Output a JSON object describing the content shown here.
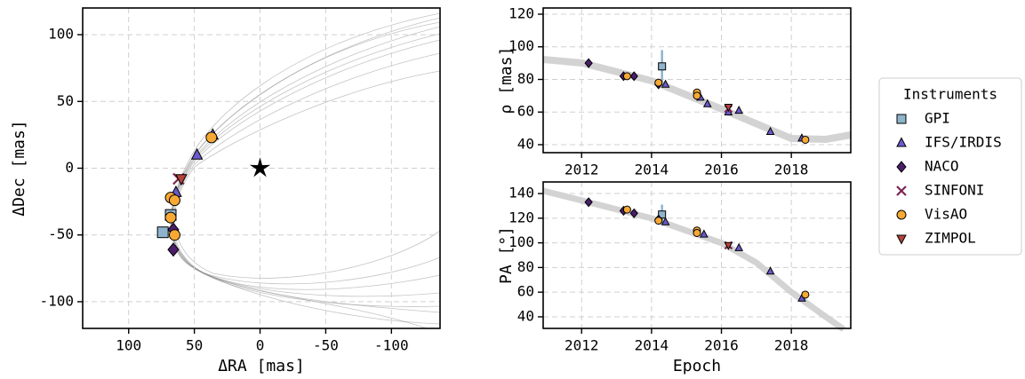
{
  "chart_data": [
    {
      "type": "scatter",
      "xlabel": "ΔRA [mas]",
      "ylabel": "ΔDec [mas]",
      "xlim": [
        135,
        -137
      ],
      "ylim": [
        -120,
        120
      ],
      "xticks": [
        100,
        50,
        0,
        -50,
        -100
      ],
      "yticks": [
        -100,
        -50,
        0,
        50,
        100
      ],
      "grid": true,
      "legend_title": "Instruments",
      "legend": "right",
      "primary": {
        "x": 0,
        "y": 0,
        "color": "#000000"
      },
      "series": [
        {
          "name": "GPI",
          "color": "#8fb3cc",
          "marker": "square",
          "x": [
            74,
            68
          ],
          "y": [
            -48,
            -35
          ]
        },
        {
          "name": "IFS/IRDIS",
          "color": "#6a5acd",
          "marker": "triangle",
          "x": [
            48,
            36,
            64
          ],
          "y": [
            10,
            25,
            -18
          ]
        },
        {
          "name": "NACO",
          "color": "#4b1d6b",
          "marker": "diamond",
          "x": [
            66,
            66
          ],
          "y": [
            -46,
            -61
          ]
        },
        {
          "name": "SINFONI",
          "color": "#7b2453",
          "marker": "x",
          "x": [
            62
          ],
          "y": [
            -8
          ]
        },
        {
          "name": "VisAO",
          "color": "#f7a933",
          "marker": "circle",
          "x": [
            37,
            68,
            68,
            65,
            65
          ],
          "y": [
            23,
            -22,
            -37,
            -24,
            -50
          ]
        },
        {
          "name": "ZIMPOL",
          "color": "#b5433a",
          "marker": "down",
          "x": [
            60
          ],
          "y": [
            -8
          ]
        }
      ]
    },
    {
      "type": "scatter",
      "ylabel": "ρ [mas]",
      "xlim": [
        2010.9,
        2019.7
      ],
      "ylim": [
        35.1,
        123.8
      ],
      "xticks": [
        2012,
        2014,
        2016,
        2018
      ],
      "yticks": [
        40,
        60,
        80,
        100,
        120
      ],
      "grid": true,
      "series": [
        {
          "color": "#8fb3cc",
          "marker": "square",
          "x": [
            2014.3
          ],
          "y": [
            88
          ],
          "errors": [
            10
          ]
        },
        {
          "color": "#6a5acd",
          "marker": "triangle",
          "x": [
            2014.4,
            2015.4,
            2015.6,
            2016.2,
            2016.5,
            2017.4,
            2018.3
          ],
          "y": [
            77,
            69,
            65,
            60,
            61,
            48,
            44
          ]
        },
        {
          "color": "#4b1d6b",
          "marker": "diamond",
          "x": [
            2012.2,
            2013.2,
            2013.5,
            2014.2
          ],
          "y": [
            90,
            82,
            82,
            77
          ]
        },
        {
          "color": "#7b2453",
          "marker": "x",
          "x": [
            2016.2
          ],
          "y": [
            62
          ]
        },
        {
          "color": "#f7a933",
          "marker": "circle",
          "x": [
            2013.3,
            2014.2,
            2015.3,
            2015.3,
            2018.4
          ],
          "y": [
            82,
            78,
            72,
            70,
            43
          ]
        },
        {
          "color": "#b5433a",
          "marker": "down",
          "x": [
            2016.2
          ],
          "y": [
            63
          ]
        }
      ]
    },
    {
      "type": "scatter",
      "xlabel": "Epoch",
      "ylabel": "PA [°]",
      "xlim": [
        2010.9,
        2019.7
      ],
      "ylim": [
        30.6,
        149.4
      ],
      "xticks": [
        2012,
        2014,
        2016,
        2018
      ],
      "yticks": [
        40,
        60,
        80,
        100,
        120,
        140
      ],
      "grid": true,
      "series": [
        {
          "color": "#8fb3cc",
          "marker": "square",
          "x": [
            2014.3
          ],
          "y": [
            123
          ],
          "errors": [
            8
          ]
        },
        {
          "color": "#6a5acd",
          "marker": "triangle",
          "x": [
            2014.4,
            2015.5,
            2016.5,
            2017.4,
            2018.3
          ],
          "y": [
            117,
            107,
            96,
            77,
            55
          ]
        },
        {
          "color": "#4b1d6b",
          "marker": "diamond",
          "x": [
            2012.2,
            2013.2,
            2013.5,
            2014.2
          ],
          "y": [
            133,
            126,
            124,
            119
          ]
        },
        {
          "color": "#7b2453",
          "marker": "x",
          "x": [
            2016.2
          ],
          "y": [
            98
          ]
        },
        {
          "color": "#f7a933",
          "marker": "circle",
          "x": [
            2013.3,
            2014.2,
            2015.3,
            2015.3,
            2018.4
          ],
          "y": [
            127,
            118,
            110,
            108,
            58
          ]
        },
        {
          "color": "#b5433a",
          "marker": "down",
          "x": [
            2016.2
          ],
          "y": [
            98
          ]
        }
      ]
    }
  ]
}
